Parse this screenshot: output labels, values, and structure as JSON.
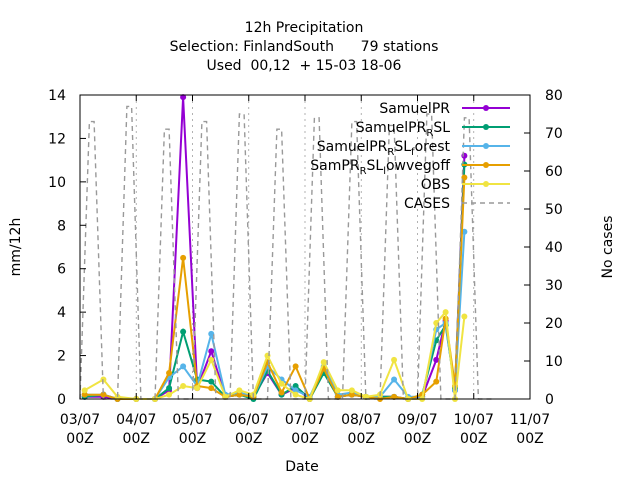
{
  "chart_data": {
    "type": "line",
    "title_lines": [
      "12h Precipitation",
      "Selection: FinlandSouth      79 stations",
      "Used  00,12  + 15-03 18-06"
    ],
    "xlabel": "Date",
    "ylabel": "mm/12h",
    "y2label": "No cases",
    "xlim": [
      0,
      96
    ],
    "ylim": [
      0,
      14
    ],
    "y2lim": [
      0,
      80
    ],
    "yticks": [
      "0",
      "2",
      "4",
      "6",
      "8",
      "10",
      "12",
      "14"
    ],
    "y2ticks": [
      "0",
      "10",
      "20",
      "30",
      "40",
      "50",
      "60",
      "70",
      "80"
    ],
    "xticks": [
      {
        "x": 0,
        "line1": "03/07",
        "line2": "00Z"
      },
      {
        "x": 12,
        "line1": "04/07",
        "line2": "00Z"
      },
      {
        "x": 24,
        "line1": "05/07",
        "line2": "00Z"
      },
      {
        "x": 36,
        "line1": "06/07",
        "line2": "00Z"
      },
      {
        "x": 48,
        "line1": "07/07",
        "line2": "00Z"
      },
      {
        "x": 60,
        "line1": "08/07",
        "line2": "00Z"
      },
      {
        "x": 72,
        "line1": "09/07",
        "line2": "00Z"
      },
      {
        "x": 84,
        "line1": "10/07",
        "line2": "00Z"
      },
      {
        "x": 96,
        "line1": "11/07",
        "line2": "00Z"
      }
    ],
    "legend": "top-right",
    "series": [
      {
        "name": "SamuelPR",
        "sub": "",
        "color": "#9400d3",
        "marker": "circle",
        "points": [
          [
            1,
            0.1
          ],
          [
            5,
            0.1
          ],
          [
            8,
            0.0
          ],
          [
            12,
            0.0
          ],
          [
            16,
            0.0
          ],
          [
            19,
            0.4
          ],
          [
            22,
            13.9
          ],
          [
            25,
            0.5
          ],
          [
            28,
            2.2
          ],
          [
            31,
            0.1
          ],
          [
            34,
            0.2
          ],
          [
            37,
            0.1
          ],
          [
            40,
            1.2
          ],
          [
            43,
            0.2
          ],
          [
            46,
            0.5
          ],
          [
            49,
            0.0
          ],
          [
            52,
            1.4
          ],
          [
            55,
            0.1
          ],
          [
            58,
            0.2
          ],
          [
            61,
            0.1
          ],
          [
            64,
            0.1
          ],
          [
            67,
            0.1
          ],
          [
            70,
            0.0
          ],
          [
            73,
            0.1
          ],
          [
            76,
            1.8
          ],
          [
            78,
            3.6
          ],
          [
            80,
            0.4
          ],
          [
            82,
            11.2
          ]
        ]
      },
      {
        "name": "SamuelPR",
        "sub": "R",
        "suffix": "SL",
        "color": "#009e73",
        "marker": "circle",
        "points": [
          [
            1,
            0.1
          ],
          [
            5,
            0.2
          ],
          [
            8,
            0.0
          ],
          [
            12,
            0.0
          ],
          [
            16,
            0.0
          ],
          [
            19,
            0.5
          ],
          [
            22,
            3.1
          ],
          [
            25,
            0.9
          ],
          [
            28,
            0.8
          ],
          [
            31,
            0.1
          ],
          [
            34,
            0.2
          ],
          [
            37,
            0.0
          ],
          [
            40,
            1.3
          ],
          [
            43,
            0.2
          ],
          [
            46,
            0.6
          ],
          [
            49,
            0.0
          ],
          [
            52,
            1.2
          ],
          [
            55,
            0.1
          ],
          [
            58,
            0.2
          ],
          [
            61,
            0.1
          ],
          [
            64,
            0.1
          ],
          [
            67,
            0.1
          ],
          [
            70,
            0.0
          ],
          [
            73,
            0.2
          ],
          [
            76,
            2.7
          ],
          [
            78,
            3.4
          ],
          [
            80,
            0.5
          ],
          [
            82,
            10.8
          ]
        ]
      },
      {
        "name": "SamuelPR",
        "sub": "R",
        "suffix": "SL",
        "sub2": "f",
        "suffix2": "orest",
        "color": "#56b4e9",
        "marker": "circle",
        "points": [
          [
            1,
            0.2
          ],
          [
            5,
            0.2
          ],
          [
            8,
            0.0
          ],
          [
            12,
            0.0
          ],
          [
            16,
            0.0
          ],
          [
            19,
            1.0
          ],
          [
            22,
            1.5
          ],
          [
            25,
            0.6
          ],
          [
            28,
            3.0
          ],
          [
            31,
            0.2
          ],
          [
            34,
            0.3
          ],
          [
            37,
            0.1
          ],
          [
            40,
            1.5
          ],
          [
            43,
            0.9
          ],
          [
            46,
            0.4
          ],
          [
            49,
            0.1
          ],
          [
            52,
            1.5
          ],
          [
            55,
            0.2
          ],
          [
            58,
            0.3
          ],
          [
            61,
            0.1
          ],
          [
            64,
            0.1
          ],
          [
            67,
            0.9
          ],
          [
            70,
            0.1
          ],
          [
            73,
            0.1
          ],
          [
            76,
            3.2
          ],
          [
            78,
            3.5
          ],
          [
            80,
            0.4
          ],
          [
            82,
            7.7
          ]
        ]
      },
      {
        "name": "SamPR",
        "sub": "R",
        "suffix": "SL",
        "sub2": "l",
        "suffix2": "owvegoff",
        "color": "#e69f00",
        "marker": "circle",
        "points": [
          [
            1,
            0.2
          ],
          [
            5,
            0.2
          ],
          [
            8,
            0.0
          ],
          [
            12,
            0.0
          ],
          [
            16,
            0.0
          ],
          [
            19,
            1.2
          ],
          [
            22,
            6.5
          ],
          [
            25,
            0.6
          ],
          [
            28,
            0.5
          ],
          [
            31,
            0.1
          ],
          [
            34,
            0.2
          ],
          [
            37,
            0.1
          ],
          [
            40,
            1.7
          ],
          [
            43,
            0.3
          ],
          [
            46,
            1.5
          ],
          [
            49,
            0.0
          ],
          [
            52,
            1.4
          ],
          [
            55,
            0.1
          ],
          [
            58,
            0.2
          ],
          [
            61,
            0.1
          ],
          [
            64,
            0.0
          ],
          [
            67,
            0.1
          ],
          [
            70,
            0.0
          ],
          [
            73,
            0.2
          ],
          [
            76,
            0.8
          ],
          [
            78,
            3.7
          ],
          [
            80,
            0.6
          ],
          [
            82,
            10.2
          ]
        ]
      },
      {
        "name": "OBS",
        "sub": "",
        "color": "#f0e442",
        "marker": "circle",
        "points": [
          [
            1,
            0.4
          ],
          [
            5,
            0.9
          ],
          [
            8,
            0.1
          ],
          [
            12,
            0.0
          ],
          [
            16,
            0.0
          ],
          [
            19,
            0.2
          ],
          [
            22,
            0.6
          ],
          [
            25,
            0.5
          ],
          [
            28,
            1.8
          ],
          [
            31,
            0.1
          ],
          [
            34,
            0.4
          ],
          [
            37,
            0.2
          ],
          [
            40,
            2.0
          ],
          [
            43,
            0.7
          ],
          [
            46,
            0.2
          ],
          [
            49,
            0.0
          ],
          [
            52,
            1.7
          ],
          [
            55,
            0.4
          ],
          [
            58,
            0.4
          ],
          [
            61,
            0.1
          ],
          [
            64,
            0.2
          ],
          [
            67,
            1.8
          ],
          [
            70,
            0.0
          ],
          [
            73,
            0.0
          ],
          [
            76,
            3.5
          ],
          [
            78,
            4.0
          ],
          [
            80,
            0.0
          ],
          [
            82,
            3.8
          ]
        ]
      },
      {
        "name": "CASES",
        "sub": "",
        "color": "#999999",
        "dashed": true,
        "axis": "y2",
        "points": [
          [
            0,
            0
          ],
          [
            2,
            73
          ],
          [
            3,
            73
          ],
          [
            5,
            0
          ],
          [
            8,
            0
          ],
          [
            10,
            77
          ],
          [
            11,
            77
          ],
          [
            13,
            0
          ],
          [
            16,
            0
          ],
          [
            18,
            71
          ],
          [
            19,
            71
          ],
          [
            21,
            0
          ],
          [
            24,
            0
          ],
          [
            26,
            73
          ],
          [
            27,
            73
          ],
          [
            29,
            0
          ],
          [
            32,
            0
          ],
          [
            34,
            75
          ],
          [
            35,
            75
          ],
          [
            37,
            0
          ],
          [
            40,
            0
          ],
          [
            42,
            71
          ],
          [
            43,
            71
          ],
          [
            45,
            0
          ],
          [
            48,
            0
          ],
          [
            50,
            74
          ],
          [
            51,
            74
          ],
          [
            53,
            0
          ],
          [
            56,
            0
          ],
          [
            58,
            73
          ],
          [
            59,
            73
          ],
          [
            61,
            0
          ],
          [
            64,
            0
          ],
          [
            66,
            72
          ],
          [
            67,
            72
          ],
          [
            69,
            0
          ],
          [
            72,
            0
          ],
          [
            74,
            75
          ],
          [
            75,
            75
          ],
          [
            77,
            0
          ],
          [
            80,
            0
          ],
          [
            82,
            74
          ],
          [
            83,
            74
          ],
          [
            85,
            0
          ],
          [
            88,
            0
          ]
        ]
      }
    ]
  }
}
